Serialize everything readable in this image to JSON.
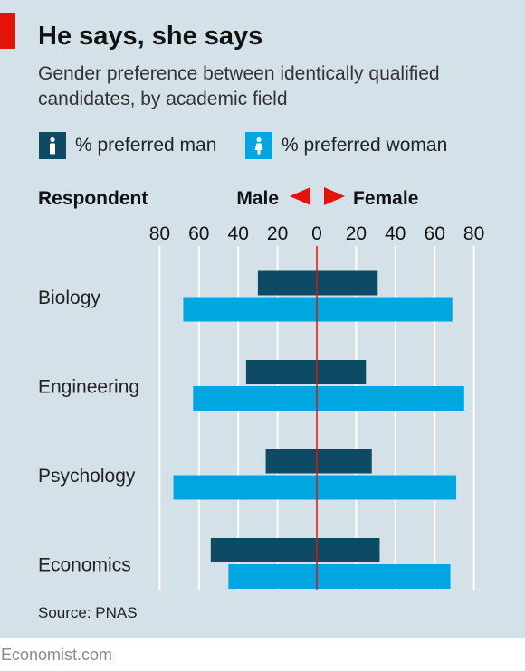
{
  "header": {
    "title": "He says, she says",
    "subtitle": "Gender preference between identically qualified candidates, by academic field"
  },
  "legend": [
    {
      "label": "% preferred man",
      "color": "#0d4a63"
    },
    {
      "label": "% preferred woman",
      "color": "#00a6e0"
    }
  ],
  "direction": {
    "left": "Male",
    "right": "Female",
    "arrow_color": "#e3120b"
  },
  "row_header": "Respondent",
  "footer": {
    "source": "Source: PNAS",
    "brand": "Economist.com"
  },
  "chart_data": {
    "type": "bar",
    "orientation": "horizontal-diverging",
    "categories": [
      "Biology",
      "Engineering",
      "Psychology",
      "Economics"
    ],
    "series": [
      {
        "name": "% preferred man",
        "color": "#0d4a63",
        "male": [
          30,
          36,
          26,
          54
        ],
        "female": [
          31,
          25,
          28,
          32
        ]
      },
      {
        "name": "% preferred woman",
        "color": "#00a6e0",
        "male": [
          68,
          63,
          73,
          45
        ],
        "female": [
          69,
          75,
          71,
          68
        ]
      }
    ],
    "x_ticks": [
      80,
      60,
      40,
      20,
      0,
      20,
      40,
      60,
      80
    ],
    "xlim": [
      -80,
      80
    ],
    "grid": true
  }
}
